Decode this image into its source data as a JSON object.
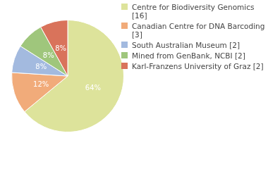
{
  "chart_data": {
    "type": "pie",
    "categories": [
      "Centre for Biodiversity Genomics [16]",
      "Canadian Centre for DNA Barcoding [3]",
      "South Australian Museum [2]",
      "Mined from GenBank, NCBI [2]",
      "Karl-Franzens University of Graz [2]"
    ],
    "values": [
      64,
      12,
      8,
      8,
      8
    ],
    "value_labels": [
      "64%",
      "12%",
      "8%",
      "8%",
      "8%"
    ],
    "data_labels": true,
    "colors": [
      "#dde39b",
      "#f1ab7a",
      "#a3badf",
      "#9fc67c",
      "#d9735b"
    ],
    "legend": "right"
  }
}
